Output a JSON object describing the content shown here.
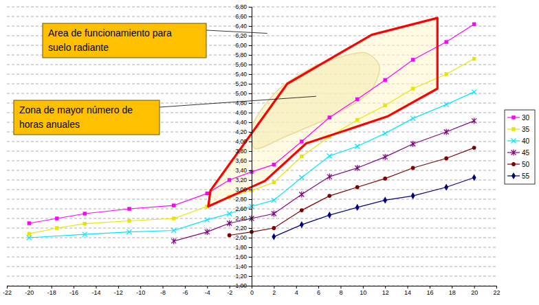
{
  "chart_data": {
    "type": "line",
    "xlim": [
      -22,
      22
    ],
    "xticks": [
      -22,
      -20,
      -18,
      -16,
      -14,
      -12,
      -10,
      -8,
      -6,
      -4,
      -2,
      0,
      2,
      4,
      6,
      8,
      10,
      12,
      14,
      16,
      18,
      20,
      22
    ],
    "ylim": [
      1.0,
      6.8
    ],
    "yticks": [
      {
        "value": 1.0,
        "label": "1,00"
      },
      {
        "value": 1.2,
        "label": "1,20"
      },
      {
        "value": 1.4,
        "label": "1,40"
      },
      {
        "value": 1.6,
        "label": "1,60"
      },
      {
        "value": 1.8,
        "label": "1,80"
      },
      {
        "value": 2.0,
        "label": "2,00"
      },
      {
        "value": 2.2,
        "label": "2,20"
      },
      {
        "value": 2.4,
        "label": "2,40"
      },
      {
        "value": 2.6,
        "label": "2,60"
      },
      {
        "value": 2.8,
        "label": "2,80"
      },
      {
        "value": 3.0,
        "label": "3,00"
      },
      {
        "value": 3.2,
        "label": "3,20"
      },
      {
        "value": 3.4,
        "label": "3,40"
      },
      {
        "value": 3.6,
        "label": "3,60"
      },
      {
        "value": 3.8,
        "label": "3,80"
      },
      {
        "value": 4.0,
        "label": "4,00"
      },
      {
        "value": 4.2,
        "label": "4,20"
      },
      {
        "value": 4.4,
        "label": "4,40"
      },
      {
        "value": 4.6,
        "label": "4,60"
      },
      {
        "value": 4.8,
        "label": "4,80"
      },
      {
        "value": 5.0,
        "label": "5,00"
      },
      {
        "value": 5.2,
        "label": "5,20"
      },
      {
        "value": 5.4,
        "label": "5,40"
      },
      {
        "value": 5.6,
        "label": "5,60"
      },
      {
        "value": 5.8,
        "label": "5,80"
      },
      {
        "value": 6.0,
        "label": "6,00"
      },
      {
        "value": 6.2,
        "label": "6,20"
      },
      {
        "value": 6.4,
        "label": "6,40"
      },
      {
        "value": 6.6,
        "label": "6,60"
      },
      {
        "value": 6.8,
        "label": "6,80"
      }
    ],
    "grid": true,
    "legend": "right",
    "series": [
      {
        "name": "30",
        "color": "#ff00ff",
        "marker": "square",
        "x": [
          -20,
          -17.5,
          -15,
          -11,
          -7,
          -4,
          -2,
          0,
          2,
          4.5,
          7,
          9.5,
          12,
          14.5,
          17.5,
          20
        ],
        "values": [
          2.3,
          2.4,
          2.5,
          2.6,
          2.67,
          2.92,
          3.2,
          3.37,
          3.52,
          4.0,
          4.5,
          4.88,
          5.28,
          5.7,
          6.07,
          6.44
        ]
      },
      {
        "name": "35",
        "color": "#e6e600",
        "marker": "square",
        "x": [
          -20,
          -17.5,
          -15,
          -11,
          -7,
          -4,
          -2,
          0,
          2,
          4.5,
          7,
          9.5,
          12,
          14.5,
          17.5,
          20
        ],
        "values": [
          2.08,
          2.2,
          2.29,
          2.35,
          2.4,
          2.65,
          2.85,
          2.98,
          3.15,
          3.69,
          4.1,
          4.45,
          4.75,
          5.1,
          5.4,
          5.72
        ]
      },
      {
        "name": "40",
        "color": "#00e5ff",
        "marker": "x",
        "x": [
          -20,
          -15,
          -11,
          -7,
          -4,
          -2,
          0,
          2,
          4.5,
          7,
          9.5,
          12,
          14.5,
          17.5,
          20
        ],
        "values": [
          2.0,
          2.07,
          2.12,
          2.15,
          2.37,
          2.5,
          2.65,
          2.78,
          3.25,
          3.7,
          3.9,
          4.17,
          4.48,
          4.77,
          5.03
        ]
      },
      {
        "name": "45",
        "color": "#800080",
        "marker": "star",
        "x": [
          -7,
          -4,
          -2,
          0,
          2,
          4.5,
          7,
          9.5,
          12,
          14.5,
          17.5,
          20
        ],
        "values": [
          1.93,
          2.12,
          2.3,
          2.4,
          2.5,
          2.9,
          3.27,
          3.45,
          3.68,
          3.95,
          4.2,
          4.43
        ]
      },
      {
        "name": "50",
        "color": "#800000",
        "marker": "circle",
        "x": [
          -2,
          0,
          2,
          4.5,
          7,
          9.5,
          12,
          14.5,
          17.5,
          20
        ],
        "values": [
          2.05,
          2.12,
          2.2,
          2.57,
          2.87,
          3.05,
          3.23,
          3.45,
          3.65,
          3.87
        ]
      },
      {
        "name": "55",
        "color": "#000080",
        "marker": "diamond",
        "x": [
          2,
          4.5,
          7,
          9.5,
          12,
          14.5,
          17.5,
          20
        ],
        "values": [
          2.02,
          2.27,
          2.47,
          2.63,
          2.78,
          2.87,
          3.05,
          3.25
        ]
      }
    ],
    "regions": [
      {
        "type": "polygon",
        "x": [
          -3.9,
          -3.7,
          3.2,
          10.8,
          16.7,
          16.7,
          12.2,
          4.9,
          1.2
        ],
        "y": [
          2.65,
          2.98,
          5.2,
          6.22,
          6.57,
          5.1,
          4.52,
          3.96,
          3.18
        ]
      },
      {
        "type": "ellipse",
        "x": [
          0.3,
          3.0,
          7.0,
          10.5,
          11.5,
          10.0,
          6.0,
          2.5,
          0.2
        ],
        "y": [
          3.85,
          4.1,
          4.5,
          5.0,
          5.55,
          5.85,
          5.6,
          5.1,
          4.4
        ]
      }
    ],
    "annotations": [
      {
        "lines": [
          "Area de funcionamiento para",
          "suelo radiante"
        ],
        "x": 1.4,
        "y": 6.25
      },
      {
        "lines": [
          "Zona de mayor número de",
          "horas anuales"
        ],
        "x": 5.8,
        "y": 4.94
      }
    ]
  }
}
